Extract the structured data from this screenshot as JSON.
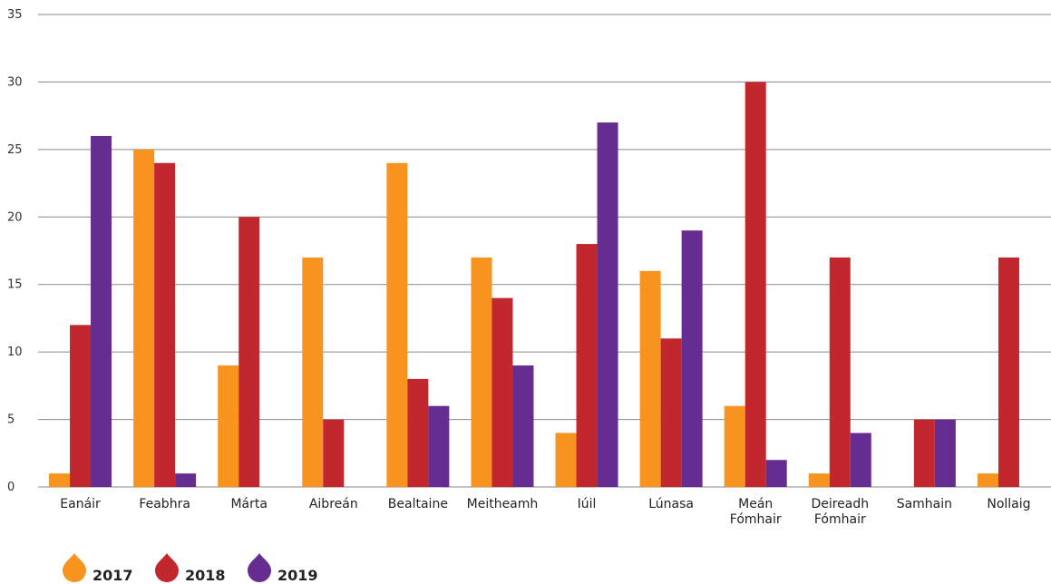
{
  "chart_data": {
    "type": "bar",
    "title": "",
    "xlabel": "",
    "ylabel": "",
    "ylim": [
      0,
      35
    ],
    "yticks": [
      0,
      5,
      10,
      15,
      20,
      25,
      30,
      35
    ],
    "grid": true,
    "legend_position": "bottom-left",
    "categories": [
      [
        "Eanáir"
      ],
      [
        "Feabhra"
      ],
      [
        "Márta"
      ],
      [
        "Aibreán"
      ],
      [
        "Bealtaine"
      ],
      [
        "Meitheamh"
      ],
      [
        "Iúil"
      ],
      [
        "Lúnasa"
      ],
      [
        "Meán",
        "Fómhair"
      ],
      [
        "Deireadh",
        "Fómhair"
      ],
      [
        "Samhain"
      ],
      [
        "Nollaig"
      ]
    ],
    "series": [
      {
        "name": "2017",
        "color": "#F7931E",
        "values": [
          1,
          25,
          9,
          17,
          24,
          17,
          4,
          16,
          6,
          1,
          0,
          1
        ]
      },
      {
        "name": "2018",
        "color": "#C1272D",
        "values": [
          12,
          24,
          20,
          5,
          8,
          14,
          18,
          11,
          30,
          17,
          5,
          17
        ]
      },
      {
        "name": "2019",
        "color": "#662D91",
        "values": [
          26,
          1,
          0,
          0,
          6,
          9,
          27,
          19,
          2,
          4,
          5,
          0
        ]
      }
    ]
  }
}
